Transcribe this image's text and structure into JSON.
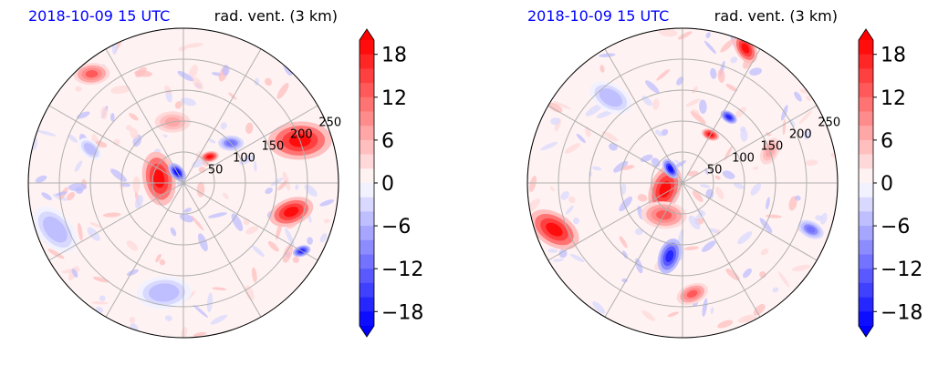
{
  "chart_data": [
    {
      "type": "heatmap",
      "projection": "polar",
      "title_left": "2018-10-09 15 UTC",
      "title_right": "rad. vent. (3 km)",
      "title_left_color": "#0000ff",
      "r_ticks": [
        50,
        100,
        150,
        200,
        250
      ],
      "r_max": 250,
      "theta_gridlines_deg": [
        0,
        30,
        60,
        90,
        120,
        150,
        180,
        210,
        240,
        270,
        300,
        330
      ],
      "colorbar": {
        "ticks": [
          18,
          12,
          6,
          0,
          -6,
          -12,
          -18
        ],
        "tick_labels": [
          "18",
          "12",
          "6",
          "0",
          "−6",
          "−12",
          "−18"
        ],
        "vmin": -20,
        "vmax": 20,
        "levels": 20,
        "extend": "both",
        "cmap": "bwr"
      },
      "features": [
        {
          "theta_deg": 170,
          "r": 40,
          "value": 20,
          "size": 30
        },
        {
          "theta_deg": 120,
          "r": 20,
          "value": -20,
          "size": 12
        },
        {
          "theta_deg": 45,
          "r": 60,
          "value": 20,
          "size": 10
        },
        {
          "theta_deg": 40,
          "r": 100,
          "value": -12,
          "size": 14
        },
        {
          "theta_deg": 20,
          "r": 200,
          "value": 20,
          "size": 35
        },
        {
          "theta_deg": 345,
          "r": 180,
          "value": 20,
          "size": 25
        },
        {
          "theta_deg": 330,
          "r": 220,
          "value": -18,
          "size": 10
        },
        {
          "theta_deg": 200,
          "r": 220,
          "value": -6,
          "size": 30
        },
        {
          "theta_deg": 130,
          "r": 230,
          "value": 12,
          "size": 20
        },
        {
          "theta_deg": 160,
          "r": 160,
          "value": -6,
          "size": 15
        },
        {
          "theta_deg": 100,
          "r": 100,
          "value": 6,
          "size": 25
        },
        {
          "theta_deg": 260,
          "r": 180,
          "value": -6,
          "size": 30
        }
      ]
    },
    {
      "type": "heatmap",
      "projection": "polar",
      "title_left": "2018-10-09 15 UTC",
      "title_right": "rad. vent. (3 km)",
      "title_left_color": "#0000ff",
      "r_ticks": [
        50,
        100,
        150,
        200,
        250
      ],
      "r_max": 250,
      "theta_gridlines_deg": [
        0,
        30,
        60,
        90,
        120,
        150,
        180,
        210,
        240,
        270,
        300,
        330
      ],
      "colorbar": {
        "ticks": [
          18,
          12,
          6,
          0,
          -6,
          -12,
          -18
        ],
        "tick_labels": [
          "18",
          "12",
          "6",
          "0",
          "−6",
          "−12",
          "−18"
        ],
        "vmin": -20,
        "vmax": 20,
        "levels": 20,
        "extend": "both",
        "cmap": "bwr"
      },
      "features": [
        {
          "theta_deg": 200,
          "r": 30,
          "value": 20,
          "size": 28
        },
        {
          "theta_deg": 130,
          "r": 30,
          "value": -20,
          "size": 12
        },
        {
          "theta_deg": 240,
          "r": 60,
          "value": 12,
          "size": 25
        },
        {
          "theta_deg": 60,
          "r": 90,
          "value": 20,
          "size": 10
        },
        {
          "theta_deg": 55,
          "r": 130,
          "value": -18,
          "size": 10
        },
        {
          "theta_deg": 65,
          "r": 240,
          "value": 20,
          "size": 18
        },
        {
          "theta_deg": 200,
          "r": 220,
          "value": 20,
          "size": 30
        },
        {
          "theta_deg": 260,
          "r": 120,
          "value": -18,
          "size": 20
        },
        {
          "theta_deg": 340,
          "r": 220,
          "value": -12,
          "size": 15
        },
        {
          "theta_deg": 275,
          "r": 180,
          "value": 12,
          "size": 18
        },
        {
          "theta_deg": 130,
          "r": 180,
          "value": -6,
          "size": 25
        },
        {
          "theta_deg": 20,
          "r": 150,
          "value": 6,
          "size": 20
        }
      ]
    }
  ]
}
